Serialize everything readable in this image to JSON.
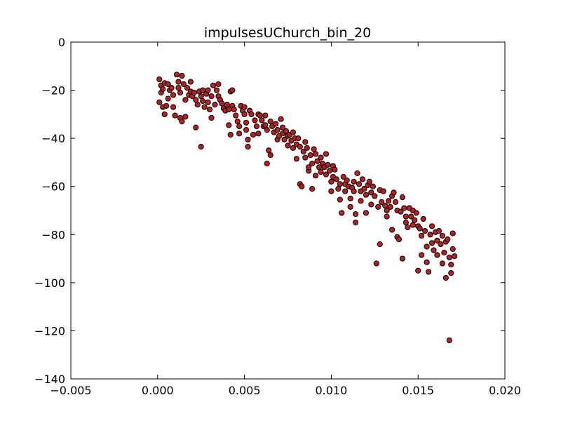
{
  "chart_data": {
    "type": "scatter",
    "title": "impulsesUChurch_bin_20",
    "xlabel": "",
    "ylabel": "",
    "xlim": [
      -0.005,
      0.02
    ],
    "ylim": [
      -140,
      0
    ],
    "x_ticks": [
      -0.005,
      0.0,
      0.005,
      0.01,
      0.015,
      0.02
    ],
    "x_tick_labels": [
      "−0.005",
      "0.000",
      "0.005",
      "0.010",
      "0.015",
      "0.020"
    ],
    "y_ticks": [
      0,
      -20,
      -40,
      -60,
      -80,
      -100,
      -120,
      -140
    ],
    "y_tick_labels": [
      "0",
      "−20",
      "−40",
      "−60",
      "−80",
      "−100",
      "−120",
      "−140"
    ],
    "grid": false,
    "marker_color": "#b22222",
    "marker_edge": "#000000",
    "points": [
      [
        0.0001,
        -15.5
      ],
      [
        0.0002,
        -18.0
      ],
      [
        0.0002,
        -21.0
      ],
      [
        0.0003,
        -19.5
      ],
      [
        0.0004,
        -17.0
      ],
      [
        0.0001,
        -25.0
      ],
      [
        0.0003,
        -27.0
      ],
      [
        0.0004,
        -30.0
      ],
      [
        0.0005,
        -26.5
      ],
      [
        0.0006,
        -23.5
      ],
      [
        0.0007,
        -20.0
      ],
      [
        0.0006,
        -17.5
      ],
      [
        0.0008,
        -19.0
      ],
      [
        0.0009,
        -22.0
      ],
      [
        0.0009,
        -27.0
      ],
      [
        0.001,
        -30.5
      ],
      [
        0.0011,
        -13.5
      ],
      [
        0.0012,
        -16.5
      ],
      [
        0.0012,
        -19.0
      ],
      [
        0.0013,
        -21.0
      ],
      [
        0.0014,
        -14.0
      ],
      [
        0.0015,
        -17.5
      ],
      [
        0.0013,
        -31.5
      ],
      [
        0.0014,
        -33.0
      ],
      [
        0.0016,
        -31.0
      ],
      [
        0.0016,
        -24.0
      ],
      [
        0.0017,
        -19.0
      ],
      [
        0.0018,
        -22.0
      ],
      [
        0.0019,
        -16.5
      ],
      [
        0.0019,
        -20.5
      ],
      [
        0.002,
        -22.5
      ],
      [
        0.0021,
        -21.0
      ],
      [
        0.0022,
        -24.0
      ],
      [
        0.0023,
        -26.0
      ],
      [
        0.0022,
        -35.5
      ],
      [
        0.0024,
        -20.5
      ],
      [
        0.0025,
        -22.5
      ],
      [
        0.0026,
        -20.0
      ],
      [
        0.0026,
        -24.5
      ],
      [
        0.0027,
        -27.0
      ],
      [
        0.0028,
        -21.5
      ],
      [
        0.0029,
        -20.0
      ],
      [
        0.0029,
        -25.0
      ],
      [
        0.003,
        -28.0
      ],
      [
        0.0031,
        -31.5
      ],
      [
        0.0025,
        -43.5
      ],
      [
        0.0031,
        -22.5
      ],
      [
        0.0032,
        -18.0
      ],
      [
        0.0033,
        -26.0
      ],
      [
        0.0034,
        -20.0
      ],
      [
        0.0035,
        -22.5
      ],
      [
        0.0035,
        -17.5
      ],
      [
        0.0036,
        -24.0
      ],
      [
        0.0037,
        -25.5
      ],
      [
        0.0038,
        -27.5
      ],
      [
        0.0039,
        -28.5
      ],
      [
        0.004,
        -26.0
      ],
      [
        0.0041,
        -28.0
      ],
      [
        0.0041,
        -34.5
      ],
      [
        0.0042,
        -38.5
      ],
      [
        0.0042,
        -20.5
      ],
      [
        0.0043,
        -20.0
      ],
      [
        0.0043,
        -26.5
      ],
      [
        0.0044,
        -28.0
      ],
      [
        0.0045,
        -30.5
      ],
      [
        0.0046,
        -33.0
      ],
      [
        0.0047,
        -35.0
      ],
      [
        0.0047,
        -38.0
      ],
      [
        0.0048,
        -26.5
      ],
      [
        0.0049,
        -28.5
      ],
      [
        0.005,
        -27.0
      ],
      [
        0.005,
        -30.0
      ],
      [
        0.0051,
        -33.5
      ],
      [
        0.0051,
        -36.5
      ],
      [
        0.0052,
        -43.5
      ],
      [
        0.0052,
        -40.5
      ],
      [
        0.0053,
        -28.5
      ],
      [
        0.0054,
        -30.0
      ],
      [
        0.0055,
        -38.5
      ],
      [
        0.0056,
        -32.5
      ],
      [
        0.0057,
        -35.0
      ],
      [
        0.0058,
        -30.0
      ],
      [
        0.0058,
        -38.0
      ],
      [
        0.0059,
        -30.5
      ],
      [
        0.006,
        -32.5
      ],
      [
        0.0061,
        -35.0
      ],
      [
        0.0062,
        -30.5
      ],
      [
        0.0062,
        -34.5
      ],
      [
        0.0063,
        -36.5
      ],
      [
        0.0063,
        -50.5
      ],
      [
        0.0064,
        -45.0
      ],
      [
        0.0065,
        -33.0
      ],
      [
        0.0065,
        -47.0
      ],
      [
        0.0066,
        -35.0
      ],
      [
        0.0067,
        -37.5
      ],
      [
        0.0068,
        -34.0
      ],
      [
        0.0069,
        -36.5
      ],
      [
        0.0069,
        -40.5
      ],
      [
        0.007,
        -39.0
      ],
      [
        0.0071,
        -32.0
      ],
      [
        0.0072,
        -35.5
      ],
      [
        0.0072,
        -38.0
      ],
      [
        0.0073,
        -40.5
      ],
      [
        0.0074,
        -37.0
      ],
      [
        0.0075,
        -39.0
      ],
      [
        0.0075,
        -43.0
      ],
      [
        0.0076,
        -38.5
      ],
      [
        0.0077,
        -41.0
      ],
      [
        0.0078,
        -37.5
      ],
      [
        0.0078,
        -44.0
      ],
      [
        0.0079,
        -40.0
      ],
      [
        0.008,
        -42.5
      ],
      [
        0.008,
        -48.5
      ],
      [
        0.0081,
        -40.0
      ],
      [
        0.0082,
        -43.5
      ],
      [
        0.0082,
        -59.0
      ],
      [
        0.0083,
        -60.0
      ],
      [
        0.0084,
        -45.5
      ],
      [
        0.0085,
        -41.5
      ],
      [
        0.0085,
        -48.0
      ],
      [
        0.0086,
        -44.0
      ],
      [
        0.0087,
        -53.5
      ],
      [
        0.0087,
        -52.0
      ],
      [
        0.0088,
        -47.0
      ],
      [
        0.0089,
        -50.5
      ],
      [
        0.0089,
        -61.0
      ],
      [
        0.009,
        -44.5
      ],
      [
        0.0091,
        -46.5
      ],
      [
        0.0091,
        -55.5
      ],
      [
        0.0092,
        -49.5
      ],
      [
        0.0093,
        -52.0
      ],
      [
        0.0094,
        -48.0
      ],
      [
        0.0094,
        -54.0
      ],
      [
        0.0095,
        -50.5
      ],
      [
        0.0096,
        -52.0
      ],
      [
        0.0097,
        -46.5
      ],
      [
        0.0097,
        -55.0
      ],
      [
        0.0098,
        -51.0
      ],
      [
        0.0099,
        -53.5
      ],
      [
        0.01,
        -58.0
      ],
      [
        0.01,
        -62.0
      ],
      [
        0.0101,
        -56.0
      ],
      [
        0.0101,
        -51.5
      ],
      [
        0.0102,
        -53.0
      ],
      [
        0.0103,
        -57.0
      ],
      [
        0.0104,
        -61.0
      ],
      [
        0.0105,
        -59.0
      ],
      [
        0.0105,
        -65.5
      ],
      [
        0.0106,
        -71.0
      ],
      [
        0.0107,
        -56.0
      ],
      [
        0.0108,
        -59.0
      ],
      [
        0.0108,
        -62.0
      ],
      [
        0.0109,
        -57.5
      ],
      [
        0.011,
        -60.0
      ],
      [
        0.0111,
        -65.0
      ],
      [
        0.0111,
        -68.5
      ],
      [
        0.0112,
        -60.5
      ],
      [
        0.0113,
        -62.0
      ],
      [
        0.0113,
        -58.0
      ],
      [
        0.0114,
        -71.5
      ],
      [
        0.0114,
        -75.0
      ],
      [
        0.0115,
        -54.5
      ],
      [
        0.0116,
        -59.0
      ],
      [
        0.0117,
        -62.0
      ],
      [
        0.0117,
        -66.0
      ],
      [
        0.0118,
        -57.0
      ],
      [
        0.0119,
        -61.0
      ],
      [
        0.012,
        -63.5
      ],
      [
        0.012,
        -71.0
      ],
      [
        0.0121,
        -59.5
      ],
      [
        0.0122,
        -58.0
      ],
      [
        0.0123,
        -62.5
      ],
      [
        0.0123,
        -67.5
      ],
      [
        0.0124,
        -60.0
      ],
      [
        0.0125,
        -64.0
      ],
      [
        0.0126,
        -92.0
      ],
      [
        0.0127,
        -68.5
      ],
      [
        0.0128,
        -84.0
      ],
      [
        0.0128,
        -61.5
      ],
      [
        0.0129,
        -66.5
      ],
      [
        0.013,
        -62.0
      ],
      [
        0.0131,
        -68.0
      ],
      [
        0.0132,
        -70.0
      ],
      [
        0.0132,
        -72.5
      ],
      [
        0.0133,
        -66.0
      ],
      [
        0.0134,
        -68.5
      ],
      [
        0.0135,
        -64.0
      ],
      [
        0.0135,
        -78.0
      ],
      [
        0.0136,
        -62.5
      ],
      [
        0.0137,
        -66.5
      ],
      [
        0.0138,
        -70.0
      ],
      [
        0.0138,
        -81.0
      ],
      [
        0.0139,
        -82.0
      ],
      [
        0.014,
        -70.5
      ],
      [
        0.0141,
        -90.0
      ],
      [
        0.0141,
        -64.5
      ],
      [
        0.0142,
        -69.0
      ],
      [
        0.0143,
        -72.5
      ],
      [
        0.0143,
        -75.0
      ],
      [
        0.0144,
        -77.0
      ],
      [
        0.0145,
        -69.0
      ],
      [
        0.0146,
        -72.5
      ],
      [
        0.0147,
        -70.0
      ],
      [
        0.0147,
        -76.0
      ],
      [
        0.0148,
        -74.0
      ],
      [
        0.0149,
        -71.0
      ],
      [
        0.015,
        -95.0
      ],
      [
        0.015,
        -76.5
      ],
      [
        0.0151,
        -77.5
      ],
      [
        0.0152,
        -80.5
      ],
      [
        0.0152,
        -88.5
      ],
      [
        0.0153,
        -73.5
      ],
      [
        0.0154,
        -78.5
      ],
      [
        0.0155,
        -85.0
      ],
      [
        0.0155,
        -91.5
      ],
      [
        0.0156,
        -95.5
      ],
      [
        0.0157,
        -80.0
      ],
      [
        0.0158,
        -83.5
      ],
      [
        0.0158,
        -76.5
      ],
      [
        0.0159,
        -86.5
      ],
      [
        0.016,
        -79.0
      ],
      [
        0.0161,
        -82.5
      ],
      [
        0.0161,
        -88.5
      ],
      [
        0.0162,
        -78.5
      ],
      [
        0.0163,
        -84.0
      ],
      [
        0.0164,
        -92.0
      ],
      [
        0.0164,
        -80.5
      ],
      [
        0.0165,
        -87.5
      ],
      [
        0.0166,
        -83.0
      ],
      [
        0.0166,
        -98.0
      ],
      [
        0.0167,
        -82.0
      ],
      [
        0.0168,
        -89.5
      ],
      [
        0.0168,
        -124.0
      ],
      [
        0.0169,
        -96.0
      ],
      [
        0.0169,
        -92.5
      ],
      [
        0.017,
        -79.5
      ],
      [
        0.017,
        -86.0
      ],
      [
        0.0171,
        -89.0
      ]
    ]
  }
}
